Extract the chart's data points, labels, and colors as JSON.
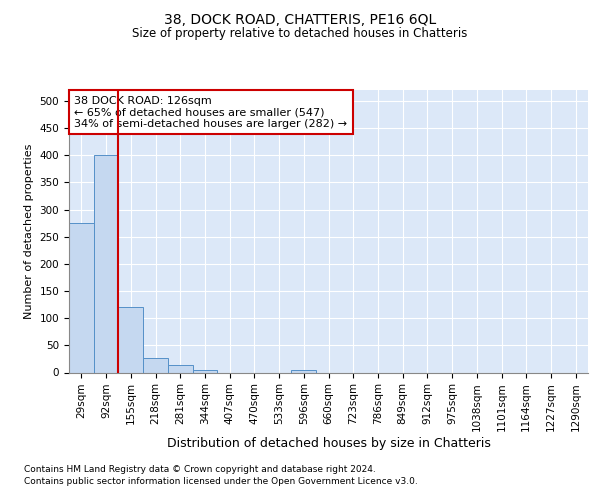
{
  "title": "38, DOCK ROAD, CHATTERIS, PE16 6QL",
  "subtitle": "Size of property relative to detached houses in Chatteris",
  "xlabel": "Distribution of detached houses by size in Chatteris",
  "ylabel": "Number of detached properties",
  "footnote1": "Contains HM Land Registry data © Crown copyright and database right 2024.",
  "footnote2": "Contains public sector information licensed under the Open Government Licence v3.0.",
  "bin_labels": [
    "29sqm",
    "92sqm",
    "155sqm",
    "218sqm",
    "281sqm",
    "344sqm",
    "407sqm",
    "470sqm",
    "533sqm",
    "596sqm",
    "660sqm",
    "723sqm",
    "786sqm",
    "849sqm",
    "912sqm",
    "975sqm",
    "1038sqm",
    "1101sqm",
    "1164sqm",
    "1227sqm",
    "1290sqm"
  ],
  "bar_heights": [
    275,
    401,
    120,
    26,
    13,
    5,
    0,
    0,
    0,
    5,
    0,
    0,
    0,
    0,
    0,
    0,
    0,
    0,
    0,
    0,
    0
  ],
  "bar_color": "#c5d8f0",
  "bar_edge_color": "#5590c8",
  "vline_x": 1.5,
  "annotation_line1": "38 DOCK ROAD: 126sqm",
  "annotation_line2": "← 65% of detached houses are smaller (547)",
  "annotation_line3": "34% of semi-detached houses are larger (282) →",
  "annotation_box_color": "#ffffff",
  "annotation_box_edge": "#cc0000",
  "vline_color": "#cc0000",
  "ylim": [
    0,
    520
  ],
  "yticks": [
    0,
    50,
    100,
    150,
    200,
    250,
    300,
    350,
    400,
    450,
    500
  ],
  "grid_color": "#d8e0ec",
  "background_color": "#dce8f8",
  "title_fontsize": 10,
  "subtitle_fontsize": 8.5,
  "ylabel_fontsize": 8,
  "xlabel_fontsize": 9,
  "tick_fontsize": 7.5,
  "annot_fontsize": 8,
  "footnote_fontsize": 6.5
}
